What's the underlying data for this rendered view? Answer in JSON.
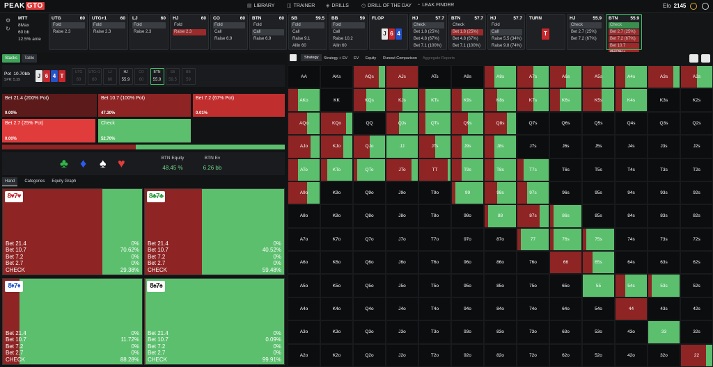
{
  "logo": {
    "peak": "PEAK",
    "gto": "GTO"
  },
  "nav": [
    "LIBRARY",
    "TRAINER",
    "DRILLS",
    "DRILL OF THE DAY",
    "LEAK FINDER"
  ],
  "elo": {
    "label": "Elo",
    "value": "2145"
  },
  "game": {
    "type": "MTT",
    "max": "8Max",
    "stack": "60 bb",
    "ante": "12.5% ante"
  },
  "cards": [
    {
      "pos": "UTG",
      "stack": "60",
      "rows": [
        {
          "t": "Fold",
          "s": "sel"
        },
        {
          "t": "Raise 2.3",
          "s": ""
        }
      ]
    },
    {
      "pos": "UTG+1",
      "stack": "60",
      "rows": [
        {
          "t": "Fold",
          "s": "sel"
        },
        {
          "t": "Raise 2.3",
          "s": ""
        }
      ]
    },
    {
      "pos": "LJ",
      "stack": "60",
      "rows": [
        {
          "t": "Fold",
          "s": "sel"
        },
        {
          "t": "Raise 2.3",
          "s": ""
        }
      ]
    },
    {
      "pos": "HJ",
      "stack": "60",
      "rows": [
        {
          "t": "Fold",
          "s": ""
        },
        {
          "t": "Raise 2.3",
          "s": "selr"
        }
      ]
    },
    {
      "pos": "CO",
      "stack": "60",
      "rows": [
        {
          "t": "Fold",
          "s": "sel"
        },
        {
          "t": "Call",
          "s": ""
        },
        {
          "t": "Raise 6.9",
          "s": ""
        }
      ]
    },
    {
      "pos": "BTN",
      "stack": "60",
      "rows": [
        {
          "t": "Fold",
          "s": ""
        },
        {
          "t": "Call",
          "s": "sel"
        },
        {
          "t": "Raise 6.9",
          "s": ""
        }
      ]
    },
    {
      "pos": "SB",
      "stack": "59.5",
      "rows": [
        {
          "t": "Fold",
          "s": "sel"
        },
        {
          "t": "Call",
          "s": ""
        },
        {
          "t": "Raise 9.1",
          "s": ""
        },
        {
          "t": "Allin 60",
          "s": ""
        }
      ]
    },
    {
      "pos": "BB",
      "stack": "59",
      "rows": [
        {
          "t": "Fold",
          "s": "sel"
        },
        {
          "t": "Call",
          "s": ""
        },
        {
          "t": "Raise 10.2",
          "s": ""
        },
        {
          "t": "Allin 60",
          "s": ""
        }
      ]
    },
    {
      "pos": "FLOP",
      "stack": "",
      "rows": []
    },
    {
      "pos": "HJ",
      "stack": "57.7",
      "rows": [
        {
          "t": "Check",
          "s": "sel"
        },
        {
          "t": "Bet 1.8 (25%)",
          "s": ""
        },
        {
          "t": "Bet 4.8 (67%)",
          "s": ""
        },
        {
          "t": "Bet 7.1 (100%)",
          "s": ""
        }
      ]
    },
    {
      "pos": "BTN",
      "stack": "57.7",
      "rows": [
        {
          "t": "Check",
          "s": ""
        },
        {
          "t": "Bet 1.8 (25%)",
          "s": "selr"
        },
        {
          "t": "Bet 4.8 (67%)",
          "s": ""
        },
        {
          "t": "Bet 7.1 (100%)",
          "s": ""
        }
      ]
    },
    {
      "pos": "HJ",
      "stack": "57.7",
      "rows": [
        {
          "t": "Fold",
          "s": ""
        },
        {
          "t": "Call",
          "s": "sel"
        },
        {
          "t": "Raise 5.5 (34%)",
          "s": ""
        },
        {
          "t": "Raise 9.8 (74%)",
          "s": ""
        }
      ]
    },
    {
      "pos": "TURN",
      "stack": "",
      "rows": []
    },
    {
      "pos": "HJ",
      "stack": "55.9",
      "rows": [
        {
          "t": "Check",
          "s": "sel"
        },
        {
          "t": "Bet 2.7 (25%)",
          "s": ""
        },
        {
          "t": "Bet 7.2 (67%)",
          "s": ""
        }
      ]
    },
    {
      "pos": "BTN",
      "stack": "55.9",
      "rows": [
        {
          "t": "Check",
          "s": "selg"
        },
        {
          "t": "Bet 2.7 (25%)",
          "s": "selr"
        },
        {
          "t": "Bet 7.2 (67%)",
          "s": "selr"
        },
        {
          "t": "Bet 10.7 (100%)",
          "s": "selr"
        },
        {
          "t": "Bet 21.4 (200%)",
          "s": "selr"
        }
      ]
    }
  ],
  "flop": [
    "J",
    "6",
    "4"
  ],
  "turn": "T",
  "tabs": {
    "stacks": "Stacks",
    "table": "Table"
  },
  "pot": {
    "label": "Pot",
    "value": "10.70bb",
    "spr": "SPR: 5.39"
  },
  "board": [
    "J",
    "6",
    "4",
    "T"
  ],
  "seats": [
    {
      "pos": "UTG",
      "st": "60"
    },
    {
      "pos": "UTG+1",
      "st": "60"
    },
    {
      "pos": "LJ",
      "st": "60"
    },
    {
      "pos": "HJ",
      "st": "55.9"
    },
    {
      "pos": "CO",
      "st": "60"
    },
    {
      "pos": "BTN",
      "st": "55.9"
    },
    {
      "pos": "SB",
      "st": "59.5"
    },
    {
      "pos": "BB",
      "st": "59"
    }
  ],
  "bets": [
    {
      "label": "Bet 21.4 (200% Pot)",
      "pct": "0.00%",
      "color": "#5c1a1a"
    },
    {
      "label": "Bet 10.7 (100% Pot)",
      "pct": "47.30%",
      "color": "#8e2424"
    },
    {
      "label": "Bet 7.2 (67% Pot)",
      "pct": "0.01%",
      "color": "#c12e2e"
    },
    {
      "label": "Bet 2.7 (25% Pot)",
      "pct": "0.00%",
      "color": "#e13c3c"
    },
    {
      "label": "Check",
      "pct": "52.70%",
      "color": "#5cbf6e"
    }
  ],
  "strategy_mix": {
    "bet": 0.473,
    "check": 0.527
  },
  "equity": {
    "eq_label": "BTN Equity",
    "eq_value": "48.45 %",
    "ev_label": "BTN Ev",
    "ev_value": "6.26 bb"
  },
  "htabs": [
    "Hand",
    "Categories",
    "Equity Graph"
  ],
  "combos": [
    {
      "c1": "8",
      "s1": "♥",
      "c2": "7",
      "s2": "♥",
      "col": "#c0282d",
      "bet": 0.7062,
      "lines": [
        [
          "Bet 21.4",
          "0%"
        ],
        [
          "Bet 10.7",
          "70.62%"
        ],
        [
          "Bet 7.2",
          "0%"
        ],
        [
          "Bet 2.7",
          "0%"
        ],
        [
          "CHECK",
          "29.38%"
        ]
      ]
    },
    {
      "c1": "8",
      "s1": "♣",
      "c2": "7",
      "s2": "♣",
      "col": "#2a9a3a",
      "bet": 0.4052,
      "lines": [
        [
          "Bet 21.4",
          "0%"
        ],
        [
          "Bet 10.7",
          "40.52%"
        ],
        [
          "Bet 7.2",
          "0%"
        ],
        [
          "Bet 2.7",
          "0%"
        ],
        [
          "CHECK",
          "59.48%"
        ]
      ]
    },
    {
      "c1": "8",
      "s1": "♦",
      "c2": "7",
      "s2": "♦",
      "col": "#2453c9",
      "bet": 0.1172,
      "lines": [
        [
          "Bet 21.4",
          "0%"
        ],
        [
          "Bet 10.7",
          "11.72%"
        ],
        [
          "Bet 7.2",
          "0%"
        ],
        [
          "Bet 2.7",
          "0%"
        ],
        [
          "CHECK",
          "88.28%"
        ]
      ]
    },
    {
      "c1": "8",
      "s1": "♠",
      "c2": "7",
      "s2": "♠",
      "col": "#222",
      "bet": 0.0009,
      "lines": [
        [
          "Bet 21.4",
          "0%"
        ],
        [
          "Bet 10.7",
          "0.09%"
        ],
        [
          "Bet 7.2",
          "0%"
        ],
        [
          "Bet 2.7",
          "0%"
        ],
        [
          "CHECK",
          "99.91%"
        ]
      ]
    }
  ],
  "rtabs": [
    "Strategy",
    "Strategy + EV",
    "EV",
    "Equity",
    "Runout Comparison",
    "Aggregate Reports"
  ],
  "ranks": [
    "A",
    "K",
    "Q",
    "J",
    "T",
    "9",
    "8",
    "7",
    "6",
    "5",
    "4",
    "3",
    "2"
  ],
  "matrix": [
    "0000000000000",
    "0000000000000",
    "0000000000000",
    "0000000000000",
    "0000000000000",
    "0000000000000",
    "0000000000000",
    "0000000000000",
    "0000000000000",
    "0000000000000",
    "0000000000000",
    "0000000000000",
    "0000000000000"
  ],
  "cell_bet": [
    [
      0,
      0,
      0.8,
      1,
      0,
      0,
      0.3,
      0.5,
      0.5,
      0.6,
      0.3,
      0.8,
      0.5
    ],
    [
      0.3,
      0,
      0.4,
      0.5,
      0.2,
      0.3,
      0.4,
      0.5,
      0.3,
      0.6,
      0.2,
      0,
      0
    ],
    [
      0.6,
      0.8,
      0,
      0.4,
      0.2,
      0.5,
      0.7,
      0,
      0,
      0,
      0,
      0,
      0
    ],
    [
      0.7,
      0.7,
      0.5,
      0,
      0.5,
      0.3,
      0.3,
      0,
      0,
      0,
      0,
      0,
      0
    ],
    [
      0.3,
      0.2,
      0.1,
      0.8,
      0.9,
      0.3,
      0.3,
      0.2,
      0,
      0,
      0,
      0,
      0
    ],
    [
      0.6,
      0,
      0,
      0,
      0,
      0.1,
      0.4,
      0.3,
      0,
      0,
      0,
      0,
      0
    ],
    [
      0,
      0,
      0,
      0,
      0,
      0,
      0.1,
      0.7,
      0.1,
      0,
      0,
      0,
      0
    ],
    [
      0,
      0,
      0,
      0,
      0,
      0,
      0,
      0.1,
      0.1,
      0.1,
      0,
      0,
      0
    ],
    [
      0,
      0,
      0,
      0,
      0,
      0,
      0,
      0,
      1,
      0.3,
      0,
      0,
      0
    ],
    [
      0,
      0,
      0,
      0,
      0,
      0,
      0,
      0,
      0,
      0,
      0.3,
      0.1,
      0
    ],
    [
      0,
      0,
      0,
      0,
      0,
      0,
      0,
      0,
      0,
      0,
      1,
      0,
      0
    ],
    [
      0,
      0,
      0,
      0,
      0,
      0,
      0,
      0,
      0,
      0,
      0,
      0,
      0
    ],
    [
      0,
      0,
      0,
      0,
      0,
      0,
      0,
      0,
      0,
      0,
      0,
      0,
      0.8
    ]
  ],
  "cell_range": [
    [
      0,
      0,
      1,
      1,
      0,
      0,
      1,
      1,
      1,
      1,
      1,
      1,
      1
    ],
    [
      1,
      0,
      1,
      1,
      1,
      1,
      1,
      1,
      1,
      1,
      1,
      0,
      0
    ],
    [
      1,
      1,
      0,
      1,
      1,
      1,
      1,
      0,
      0,
      0,
      0,
      0,
      0
    ],
    [
      1,
      1,
      1,
      1,
      1,
      1,
      1,
      0,
      0,
      0,
      0,
      0,
      0
    ],
    [
      1,
      1,
      1,
      1,
      1,
      1,
      1,
      1,
      0,
      0,
      0,
      0,
      0
    ],
    [
      1,
      0,
      0,
      0,
      0,
      1,
      1,
      1,
      0,
      0,
      0,
      0,
      0
    ],
    [
      0,
      0,
      0,
      0,
      0,
      0,
      1,
      1,
      1,
      0,
      0,
      0,
      0
    ],
    [
      0,
      0,
      0,
      0,
      0,
      0,
      0,
      1,
      1,
      1,
      0,
      0,
      0
    ],
    [
      0,
      0,
      0,
      0,
      0,
      0,
      0,
      0,
      1,
      1,
      0,
      0,
      0
    ],
    [
      0,
      0,
      0,
      0,
      0,
      0,
      0,
      0,
      0,
      1,
      1,
      1,
      0
    ],
    [
      0,
      0,
      0,
      0,
      0,
      0,
      0,
      0,
      0,
      0,
      1,
      0,
      0
    ],
    [
      0,
      0,
      0,
      0,
      0,
      0,
      0,
      0,
      0,
      0,
      0,
      1,
      0
    ],
    [
      0,
      0,
      0,
      0,
      0,
      0,
      0,
      0,
      0,
      0,
      0,
      0,
      1
    ]
  ],
  "colors": {
    "bet": "#8e2424",
    "check": "#5cbf6e",
    "accent": "#3fbf6a"
  }
}
